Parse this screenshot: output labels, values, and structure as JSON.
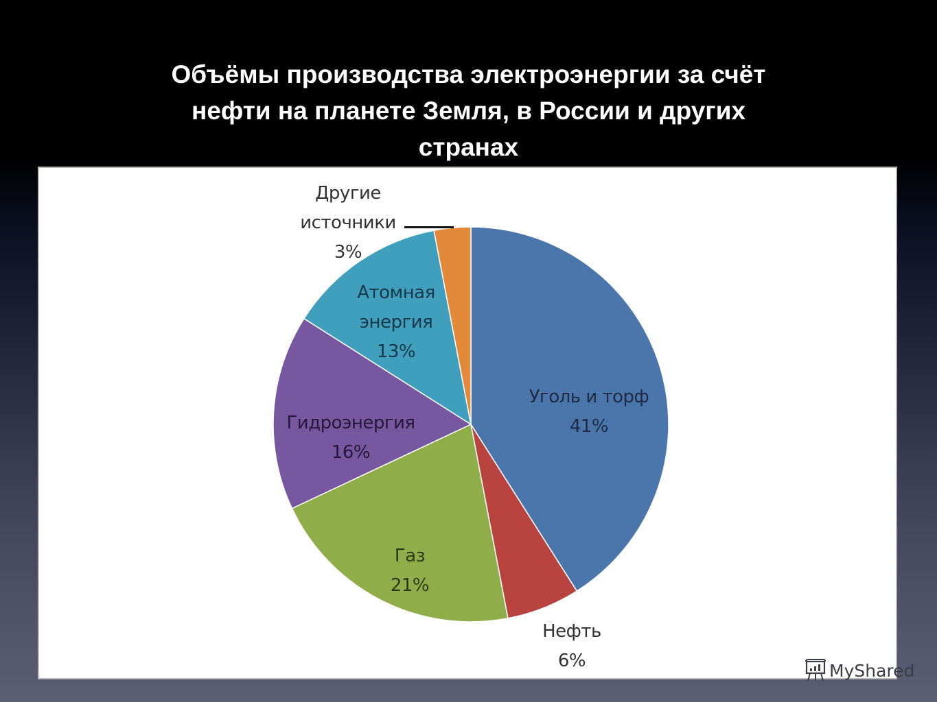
{
  "slide": {
    "title_lines": [
      "Объёмы производства электроэнергии за счёт",
      "нефти на планете Земля, в  России и других",
      "странах"
    ]
  },
  "watermark": {
    "text": "MyShared",
    "icon": "presentation-board-icon"
  },
  "colors": {
    "background_top": "#000000",
    "background_bottom": "#5c5e74",
    "title": "#ffffff",
    "chart_background": "#ffffff"
  },
  "chart_data": {
    "type": "pie",
    "title": "Объёмы производства электроэнергии за счёт нефти на планете Земля, в России и других странах",
    "start_angle_deg": 0,
    "direction": "clockwise",
    "legend": "none (data labels on/next to slices)",
    "slices": [
      {
        "name": "Уголь и торф",
        "label_lines": [
          "Уголь и торф",
          "41%"
        ],
        "value": 41,
        "color": "#4a76ac",
        "text_color": "#1f2a44"
      },
      {
        "name": "Нефть",
        "label_lines": [
          "Нефть",
          "6%"
        ],
        "value": 6,
        "color": "#b8433f",
        "text_color": "#333333"
      },
      {
        "name": "Газ",
        "label_lines": [
          "Газ",
          "21%"
        ],
        "value": 21,
        "color": "#8fad49",
        "text_color": "#2b3a14"
      },
      {
        "name": "Гидроэнергия",
        "label_lines": [
          "Гидроэнергия",
          "16%"
        ],
        "value": 16,
        "color": "#7657a0",
        "text_color": "#251838"
      },
      {
        "name": "Атомная энергия",
        "label_lines": [
          "Атомная",
          "энергия",
          "13%"
        ],
        "value": 13,
        "color": "#3f9fbc",
        "text_color": "#14394a"
      },
      {
        "name": "Другие источники",
        "label_lines": [
          "Другие",
          "источники",
          "3%"
        ],
        "value": 3,
        "color": "#e38a3a",
        "text_color": "#333333"
      }
    ]
  }
}
